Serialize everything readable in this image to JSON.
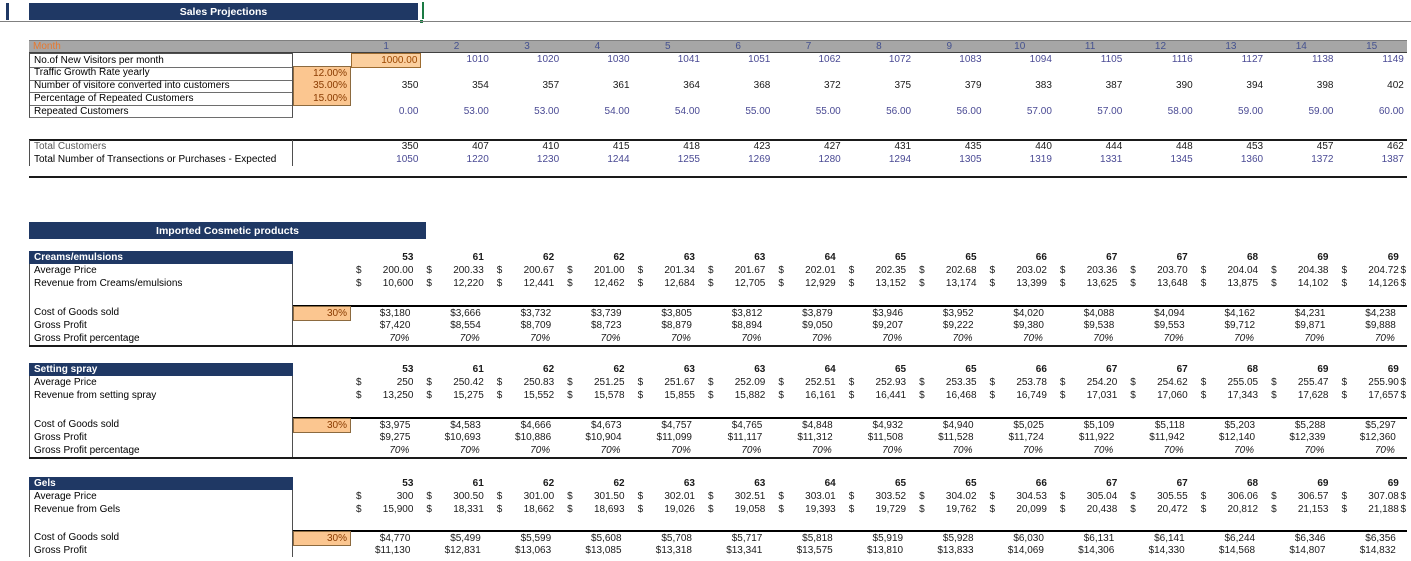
{
  "colors": {
    "header_navy": "#1f3864",
    "month_band_gray": "#a6a6a6",
    "input_cell_orange": "#fbc690",
    "input_text_red": "#8a3b00",
    "linked_number_blue": "#4a4a94",
    "month_label_orange": "#e8782e",
    "selection_green": "#1a7a43"
  },
  "currency_symbol": "$",
  "section1": {
    "title": "Sales Projections",
    "month_label": "Month",
    "months": [
      "1",
      "2",
      "3",
      "4",
      "5",
      "6",
      "7",
      "8",
      "9",
      "10",
      "11",
      "12",
      "13",
      "14",
      "15"
    ],
    "rows": [
      {
        "label": "No.of New Visitors per month",
        "style": "blue",
        "first_cell_highlight": true,
        "values": [
          "1000.00",
          "1010",
          "1020",
          "1030",
          "1041",
          "1051",
          "1062",
          "1072",
          "1083",
          "1094",
          "1105",
          "1116",
          "1127",
          "1138",
          "1149"
        ]
      },
      {
        "label": "Traffic Growth Rate  yearly",
        "rate": "12.00%"
      },
      {
        "label": "Number of visitore converted into customers",
        "rate": "35.00%",
        "style": "black",
        "values": [
          "350",
          "354",
          "357",
          "361",
          "364",
          "368",
          "372",
          "375",
          "379",
          "383",
          "387",
          "390",
          "394",
          "398",
          "402"
        ]
      },
      {
        "label": "Percentage of Repeated Customers",
        "rate": "15.00%"
      },
      {
        "label": "Repeated Customers",
        "style": "blue",
        "values": [
          "0.00",
          "53.00",
          "53.00",
          "54.00",
          "54.00",
          "55.00",
          "55.00",
          "56.00",
          "56.00",
          "57.00",
          "57.00",
          "58.00",
          "59.00",
          "59.00",
          "60.00"
        ]
      }
    ],
    "totals": [
      {
        "label": "Total Customers",
        "style": "black",
        "label_gray": true,
        "values": [
          "350",
          "407",
          "410",
          "415",
          "418",
          "423",
          "427",
          "431",
          "435",
          "440",
          "444",
          "448",
          "453",
          "457",
          "462"
        ]
      },
      {
        "label": "Total Number of Transections or Purchases  - Expected",
        "style": "blue",
        "values": [
          "1050",
          "1220",
          "1230",
          "1244",
          "1255",
          "1269",
          "1280",
          "1294",
          "1305",
          "1319",
          "1331",
          "1345",
          "1360",
          "1372",
          "1387"
        ]
      }
    ]
  },
  "section2": {
    "title": "Imported Cosmetic products",
    "products": [
      {
        "name": "Creams/emulsions",
        "quantities": [
          "53",
          "61",
          "62",
          "62",
          "63",
          "63",
          "64",
          "65",
          "65",
          "66",
          "67",
          "67",
          "68",
          "69",
          "69"
        ],
        "avg_price_label": "Average Price",
        "avg_prices": [
          "200.00",
          "200.33",
          "200.67",
          "201.00",
          "201.34",
          "201.67",
          "202.01",
          "202.35",
          "202.68",
          "203.02",
          "203.36",
          "203.70",
          "204.04",
          "204.38",
          "204.72"
        ],
        "revenue_label": "Revenue from Creams/emulsions",
        "revenues": [
          "10,600",
          "12,220",
          "12,441",
          "12,462",
          "12,684",
          "12,705",
          "12,929",
          "13,152",
          "13,174",
          "13,399",
          "13,625",
          "13,648",
          "13,875",
          "14,102",
          "14,126"
        ],
        "cogs_label": "Cost of Goods sold",
        "cogs_rate": "30%",
        "cogs": [
          "$3,180",
          "$3,666",
          "$3,732",
          "$3,739",
          "$3,805",
          "$3,812",
          "$3,879",
          "$3,946",
          "$3,952",
          "$4,020",
          "$4,088",
          "$4,094",
          "$4,162",
          "$4,231",
          "$4,238"
        ],
        "gross_profit_label": "Gross Profit",
        "gross_profits": [
          "$7,420",
          "$8,554",
          "$8,709",
          "$8,723",
          "$8,879",
          "$8,894",
          "$9,050",
          "$9,207",
          "$9,222",
          "$9,380",
          "$9,538",
          "$9,553",
          "$9,712",
          "$9,871",
          "$9,888"
        ],
        "gross_profit_pct_label": "Gross Profit percentage",
        "gross_profit_pct": "70%"
      },
      {
        "name": "Setting spray",
        "quantities": [
          "53",
          "61",
          "62",
          "62",
          "63",
          "63",
          "64",
          "65",
          "65",
          "66",
          "67",
          "67",
          "68",
          "69",
          "69"
        ],
        "avg_price_label": "Average Price",
        "avg_prices": [
          "250",
          "250.42",
          "250.83",
          "251.25",
          "251.67",
          "252.09",
          "252.51",
          "252.93",
          "253.35",
          "253.78",
          "254.20",
          "254.62",
          "255.05",
          "255.47",
          "255.90"
        ],
        "revenue_label": "Revenue from setting spray",
        "revenues": [
          "13,250",
          "15,275",
          "15,552",
          "15,578",
          "15,855",
          "15,882",
          "16,161",
          "16,441",
          "16,468",
          "16,749",
          "17,031",
          "17,060",
          "17,343",
          "17,628",
          "17,657"
        ],
        "cogs_label": "Cost of Goods sold",
        "cogs_rate": "30%",
        "cogs": [
          "$3,975",
          "$4,583",
          "$4,666",
          "$4,673",
          "$4,757",
          "$4,765",
          "$4,848",
          "$4,932",
          "$4,940",
          "$5,025",
          "$5,109",
          "$5,118",
          "$5,203",
          "$5,288",
          "$5,297"
        ],
        "gross_profit_label": "Gross Profit",
        "gross_profits": [
          "$9,275",
          "$10,693",
          "$10,886",
          "$10,904",
          "$11,099",
          "$11,117",
          "$11,312",
          "$11,508",
          "$11,528",
          "$11,724",
          "$11,922",
          "$11,942",
          "$12,140",
          "$12,339",
          "$12,360"
        ],
        "gross_profit_pct_label": "Gross Profit percentage",
        "gross_profit_pct": "70%"
      },
      {
        "name": "Gels",
        "quantities": [
          "53",
          "61",
          "62",
          "62",
          "63",
          "63",
          "64",
          "65",
          "65",
          "66",
          "67",
          "67",
          "68",
          "69",
          "69"
        ],
        "avg_price_label": "Average Price",
        "avg_prices": [
          "300",
          "300.50",
          "301.00",
          "301.50",
          "302.01",
          "302.51",
          "303.01",
          "303.52",
          "304.02",
          "304.53",
          "305.04",
          "305.55",
          "306.06",
          "306.57",
          "307.08"
        ],
        "revenue_label": "Revenue from Gels",
        "revenues": [
          "15,900",
          "18,331",
          "18,662",
          "18,693",
          "19,026",
          "19,058",
          "19,393",
          "19,729",
          "19,762",
          "20,099",
          "20,438",
          "20,472",
          "20,812",
          "21,153",
          "21,188"
        ],
        "cogs_label": "Cost of Goods sold",
        "cogs_rate": "30%",
        "cogs": [
          "$4,770",
          "$5,499",
          "$5,599",
          "$5,608",
          "$5,708",
          "$5,717",
          "$5,818",
          "$5,919",
          "$5,928",
          "$6,030",
          "$6,131",
          "$6,141",
          "$6,244",
          "$6,346",
          "$6,356"
        ],
        "gross_profit_label": "Gross Profit",
        "gross_profits": [
          "$11,130",
          "$12,831",
          "$13,063",
          "$13,085",
          "$13,318",
          "$13,341",
          "$13,575",
          "$13,810",
          "$13,833",
          "$14,069",
          "$14,306",
          "$14,330",
          "$14,568",
          "$14,807",
          "$14,832"
        ]
      }
    ]
  }
}
